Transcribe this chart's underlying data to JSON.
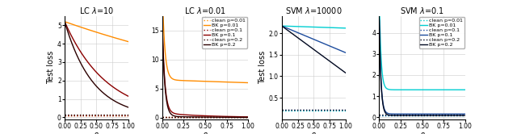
{
  "panels": [
    {
      "title": "LC $\\lambda$=10",
      "ylabel": "Test loss",
      "xlabel": "$\\beta$",
      "xlim": [
        0,
        1.0
      ],
      "ylim": [
        -0.1,
        5.5
      ],
      "yticks": [
        0,
        1,
        2,
        3,
        4,
        5
      ],
      "has_legend": false,
      "type": "LC",
      "lambda": 10
    },
    {
      "title": "LC $\\lambda$=0.01",
      "ylabel": "",
      "xlabel": "$\\beta$",
      "xlim": [
        0,
        1.0
      ],
      "ylim": [
        -0.3,
        17.5
      ],
      "yticks": [
        0,
        5,
        10,
        15
      ],
      "has_legend": true,
      "type": "LC",
      "lambda": 0.01
    },
    {
      "title": "SVM $\\lambda$=10000",
      "ylabel": "Test loss",
      "xlabel": "$\\beta$",
      "xlim": [
        0,
        1.0
      ],
      "ylim": [
        0.0,
        2.4
      ],
      "yticks": [
        0.5,
        1.0,
        1.5,
        2.0
      ],
      "has_legend": false,
      "type": "SVM",
      "lambda": 10000
    },
    {
      "title": "SVM $\\lambda$=0.1",
      "ylabel": "",
      "xlabel": "$\\beta$",
      "xlim": [
        0,
        1.0
      ],
      "ylim": [
        -0.1,
        4.8
      ],
      "yticks": [
        0,
        1,
        2,
        3,
        4
      ],
      "has_legend": true,
      "type": "SVM",
      "lambda": 0.1
    }
  ],
  "colors_lc": {
    "p001_bk": "#FF8C00",
    "p01_bk": "#8B0000",
    "p02_bk": "#2b0000"
  },
  "colors_svm": {
    "p001_bk": "#00CED1",
    "p01_bk": "#1E4D9E",
    "p02_bk": "#000820"
  },
  "legend_entries_lc": [
    {
      "label": "clean p=0.01",
      "color": "#FF8C00",
      "ls": "dotted"
    },
    {
      "label": "BK p=0.01",
      "color": "#FF8C00",
      "ls": "solid"
    },
    {
      "label": "clean p=0.1",
      "color": "#8B0000",
      "ls": "dotted"
    },
    {
      "label": "BK p=0.1",
      "color": "#8B0000",
      "ls": "solid"
    },
    {
      "label": "clean p=0.2",
      "color": "#2b0000",
      "ls": "dotted"
    },
    {
      "label": "BK p=0.2",
      "color": "#2b0000",
      "ls": "solid"
    }
  ],
  "legend_entries_svm": [
    {
      "label": "clean p=0.01",
      "color": "#00CED1",
      "ls": "dotted"
    },
    {
      "label": "BK p=0.01",
      "color": "#00CED1",
      "ls": "solid"
    },
    {
      "label": "clean p=0.1",
      "color": "#1E4D9E",
      "ls": "dotted"
    },
    {
      "label": "BK p=0.1",
      "color": "#1E4D9E",
      "ls": "solid"
    },
    {
      "label": "clean p=0.2",
      "color": "#000820",
      "ls": "dotted"
    },
    {
      "label": "BK p=0.2",
      "color": "#000820",
      "ls": "solid"
    }
  ]
}
